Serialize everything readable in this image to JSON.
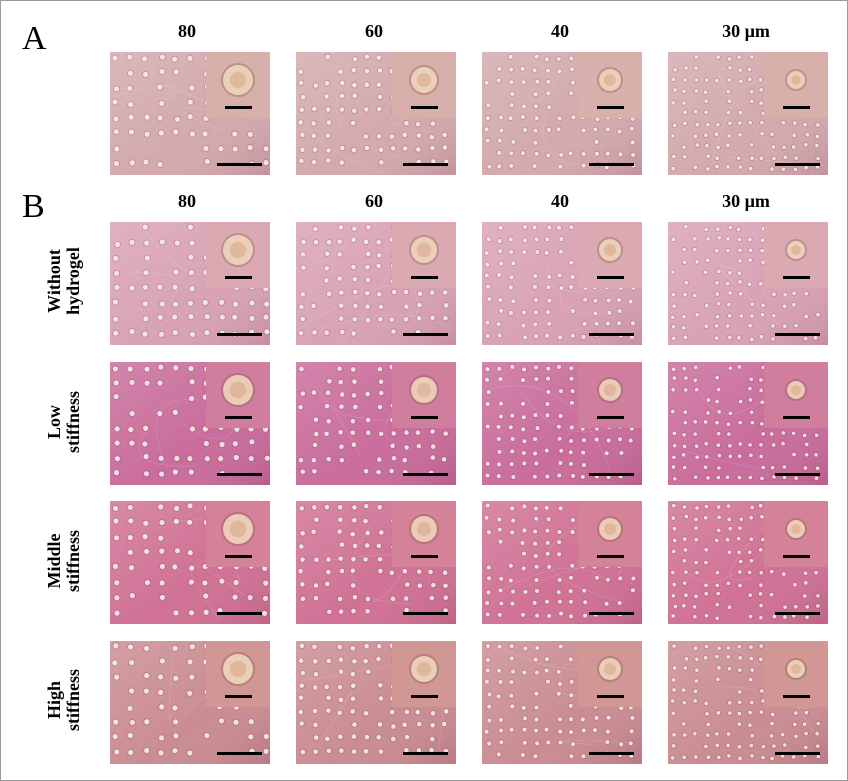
{
  "figure": {
    "panel_a": {
      "letter": "A",
      "column_headers": [
        "80",
        "60",
        "40",
        "30 µm"
      ]
    },
    "panel_b": {
      "letter": "B",
      "column_headers": [
        "80",
        "60",
        "40",
        "30 µm"
      ],
      "row_labels": [
        {
          "line1": "Without",
          "line2": "hydrogel"
        },
        {
          "line1": "Low",
          "line2": "stiffness"
        },
        {
          "line1": "Middle",
          "line2": "stiffness"
        },
        {
          "line1": "High",
          "line2": "stiffness"
        }
      ]
    },
    "colors": {
      "panel_a_tone": "#d2a8ac",
      "without_hydrogel_tone": "#d8a0b4",
      "low_stiffness_tone": "#c86a9a",
      "middle_stiffness_tone": "#cf6f93",
      "high_stiffness_tone": "#c98a90",
      "scale_bar": "#000000"
    }
  }
}
